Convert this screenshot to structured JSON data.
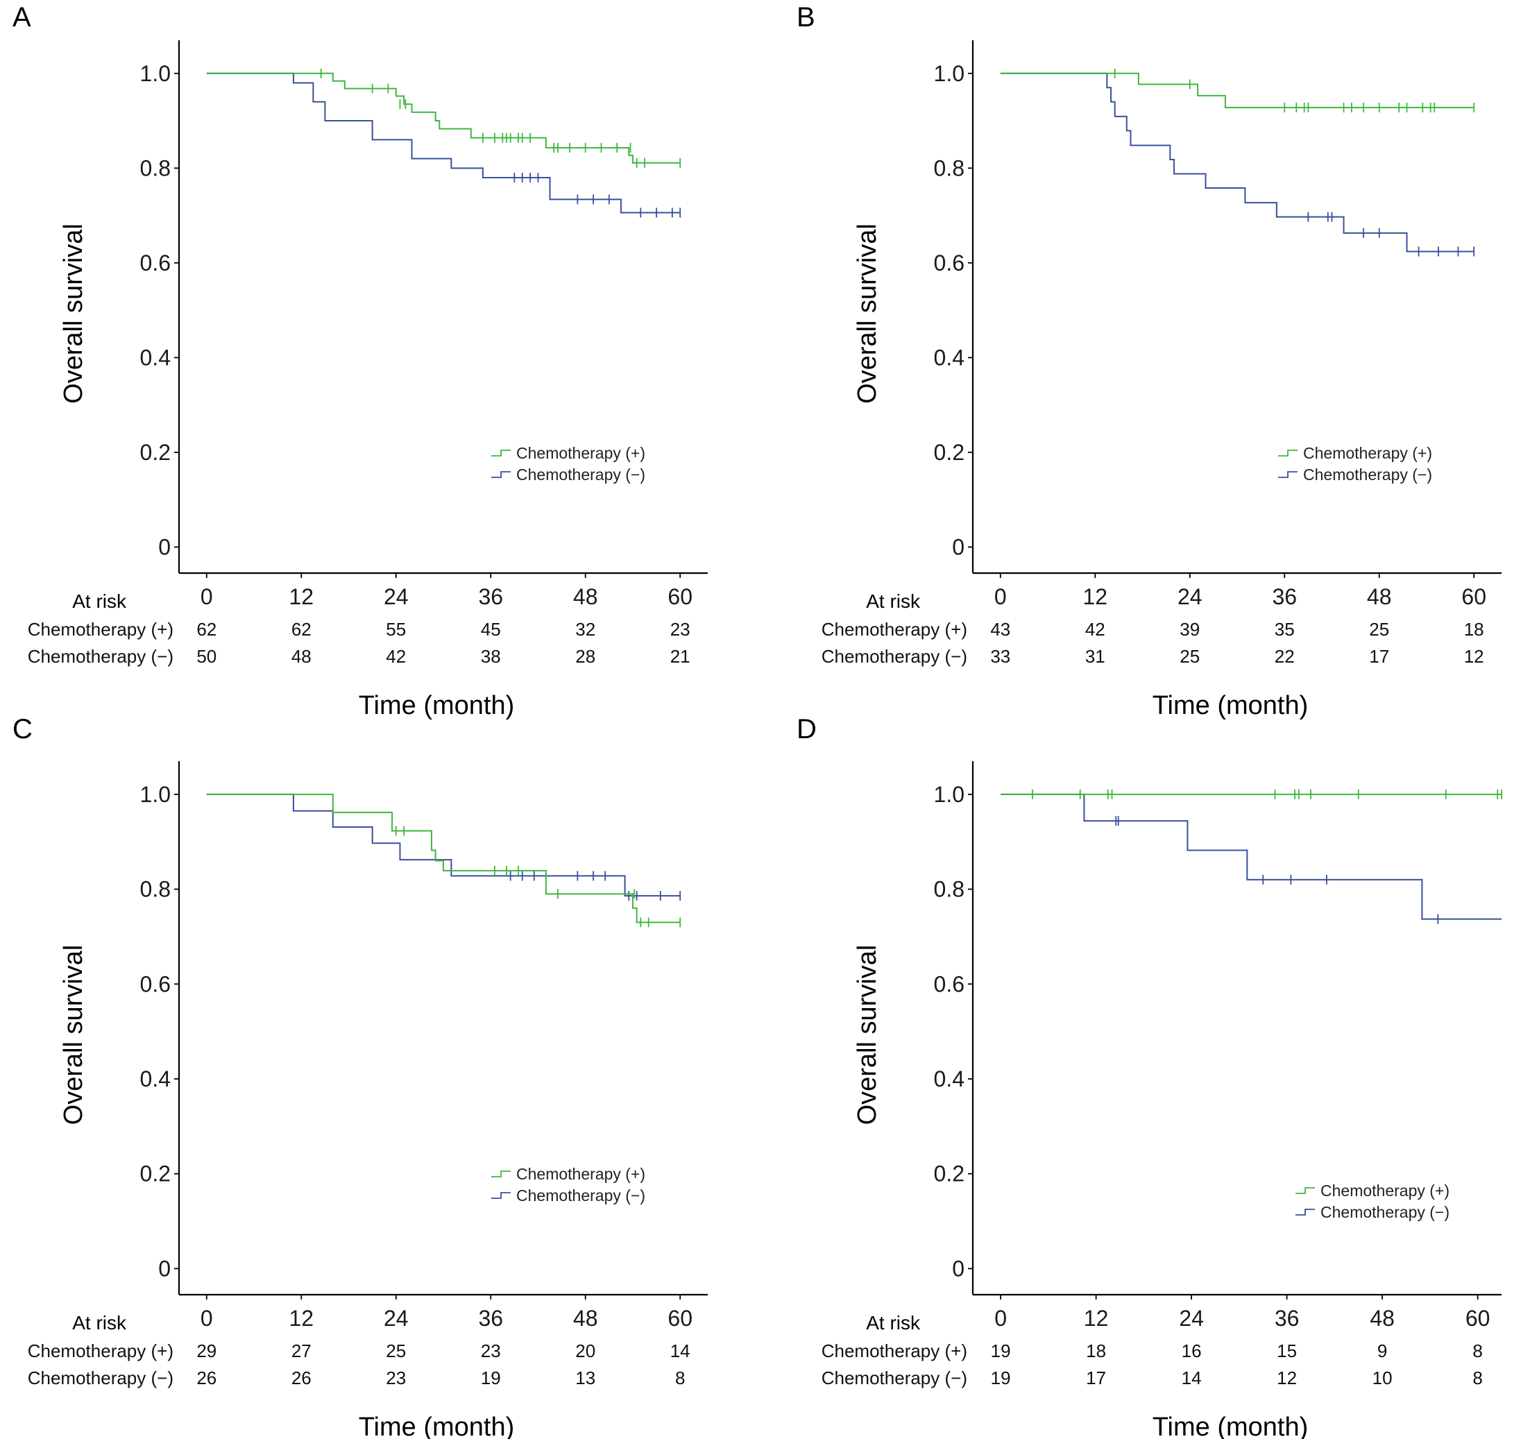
{
  "colors": {
    "chemo_plus": "#3fb63f",
    "chemo_minus": "#3a4f9c",
    "axis": "#000000"
  },
  "legend_labels": [
    "Chemotherapy (+)",
    "Chemotherapy (−)"
  ],
  "at_risk_title": "At risk",
  "xlabel": "Time (month)",
  "ylabel": "Overall survival",
  "chart_data": [
    {
      "panel": "A",
      "type": "line",
      "xlabel": "Time (month)",
      "ylabel": "Overall survival",
      "x_ticks": [
        0,
        12,
        24,
        36,
        48,
        60
      ],
      "y_ticks": [
        0,
        0.2,
        0.4,
        0.6,
        0.8,
        1.0
      ],
      "y_tick_labels": [
        "0",
        "0.2",
        "0.4",
        "0.6",
        "0.8",
        "1.0"
      ],
      "xlim": [
        -3.5,
        63.5
      ],
      "ylim": [
        -0.055,
        1.07
      ],
      "legend": "lower-right",
      "series": [
        {
          "name": "Chemotherapy (+)",
          "steps": [
            [
              0,
              1.0
            ],
            [
              16,
              0.984
            ],
            [
              17.5,
              0.968
            ],
            [
              24,
              0.952
            ],
            [
              25,
              0.935
            ],
            [
              26,
              0.918
            ],
            [
              29,
              0.9
            ],
            [
              29.5,
              0.883
            ],
            [
              33.5,
              0.864
            ],
            [
              43,
              0.843
            ],
            [
              53.5,
              0.827
            ],
            [
              54,
              0.811
            ],
            [
              60,
              0.811
            ]
          ],
          "censors": [
            [
              14.5,
              1.0
            ],
            [
              21,
              0.968
            ],
            [
              23,
              0.968
            ],
            [
              24.5,
              0.935
            ],
            [
              25.2,
              0.935
            ],
            [
              35,
              0.864
            ],
            [
              36.5,
              0.864
            ],
            [
              37.5,
              0.864
            ],
            [
              38,
              0.864
            ],
            [
              38.5,
              0.864
            ],
            [
              39.5,
              0.864
            ],
            [
              40,
              0.864
            ],
            [
              41,
              0.864
            ],
            [
              44,
              0.843
            ],
            [
              44.5,
              0.843
            ],
            [
              46,
              0.843
            ],
            [
              48,
              0.843
            ],
            [
              50,
              0.843
            ],
            [
              52,
              0.843
            ],
            [
              53.7,
              0.843
            ],
            [
              54.5,
              0.811
            ],
            [
              55.5,
              0.811
            ],
            [
              60,
              0.811
            ]
          ],
          "at_risk": [
            62,
            62,
            55,
            45,
            32,
            23
          ]
        },
        {
          "name": "Chemotherapy (−)",
          "steps": [
            [
              0,
              1.0
            ],
            [
              11,
              0.98
            ],
            [
              13.5,
              0.94
            ],
            [
              15,
              0.9
            ],
            [
              21,
              0.86
            ],
            [
              26,
              0.82
            ],
            [
              31,
              0.8
            ],
            [
              35,
              0.78
            ],
            [
              43.5,
              0.734
            ],
            [
              52.5,
              0.706
            ],
            [
              60,
              0.706
            ]
          ],
          "censors": [
            [
              39,
              0.78
            ],
            [
              40,
              0.78
            ],
            [
              41,
              0.78
            ],
            [
              42,
              0.78
            ],
            [
              47,
              0.734
            ],
            [
              49,
              0.734
            ],
            [
              51,
              0.734
            ],
            [
              55,
              0.706
            ],
            [
              57,
              0.706
            ],
            [
              59,
              0.706
            ],
            [
              60,
              0.706
            ]
          ],
          "at_risk": [
            50,
            48,
            42,
            38,
            28,
            21
          ]
        }
      ]
    },
    {
      "panel": "B",
      "type": "line",
      "xlabel": "Time (month)",
      "ylabel": "Overall survival",
      "x_ticks": [
        0,
        12,
        24,
        36,
        48,
        60
      ],
      "y_ticks": [
        0,
        0.2,
        0.4,
        0.6,
        0.8,
        1.0
      ],
      "y_tick_labels": [
        "0",
        "0.2",
        "0.4",
        "0.6",
        "0.8",
        "1.0"
      ],
      "xlim": [
        -3.5,
        63.5
      ],
      "ylim": [
        -0.055,
        1.07
      ],
      "legend": "lower-right",
      "series": [
        {
          "name": "Chemotherapy (+)",
          "steps": [
            [
              0,
              1.0
            ],
            [
              17.5,
              0.977
            ],
            [
              25,
              0.953
            ],
            [
              28.5,
              0.928
            ],
            [
              60,
              0.928
            ]
          ],
          "censors": [
            [
              14.5,
              1.0
            ],
            [
              24,
              0.977
            ],
            [
              36,
              0.928
            ],
            [
              37.5,
              0.928
            ],
            [
              38.5,
              0.928
            ],
            [
              39,
              0.928
            ],
            [
              43.5,
              0.928
            ],
            [
              44.5,
              0.928
            ],
            [
              46,
              0.928
            ],
            [
              48,
              0.928
            ],
            [
              50.5,
              0.928
            ],
            [
              51.5,
              0.928
            ],
            [
              53.5,
              0.928
            ],
            [
              54.5,
              0.928
            ],
            [
              55,
              0.928
            ],
            [
              60,
              0.928
            ]
          ],
          "at_risk": [
            43,
            42,
            39,
            35,
            25,
            18
          ]
        },
        {
          "name": "Chemotherapy (−)",
          "steps": [
            [
              0,
              1.0
            ],
            [
              13.5,
              0.97
            ],
            [
              14,
              0.94
            ],
            [
              14.5,
              0.909
            ],
            [
              16,
              0.879
            ],
            [
              16.5,
              0.848
            ],
            [
              21.5,
              0.818
            ],
            [
              22,
              0.788
            ],
            [
              26,
              0.758
            ],
            [
              31,
              0.727
            ],
            [
              35,
              0.697
            ],
            [
              43.5,
              0.663
            ],
            [
              51.5,
              0.624
            ],
            [
              60,
              0.624
            ]
          ],
          "censors": [
            [
              39,
              0.697
            ],
            [
              41.5,
              0.697
            ],
            [
              42,
              0.697
            ],
            [
              46,
              0.663
            ],
            [
              48,
              0.663
            ],
            [
              53,
              0.624
            ],
            [
              55.5,
              0.624
            ],
            [
              58,
              0.624
            ],
            [
              60,
              0.624
            ]
          ],
          "at_risk": [
            33,
            31,
            25,
            22,
            17,
            12
          ]
        }
      ]
    },
    {
      "panel": "C",
      "type": "line",
      "xlabel": "Time (month)",
      "ylabel": "Overall survival",
      "x_ticks": [
        0,
        12,
        24,
        36,
        48,
        60
      ],
      "y_ticks": [
        0,
        0.2,
        0.4,
        0.6,
        0.8,
        1.0
      ],
      "y_tick_labels": [
        "0",
        "0.2",
        "0.4",
        "0.6",
        "0.8",
        "1.0"
      ],
      "xlim": [
        -3.5,
        63.5
      ],
      "ylim": [
        -0.055,
        1.07
      ],
      "legend": "lower-right",
      "series": [
        {
          "name": "Chemotherapy (+)",
          "steps": [
            [
              0,
              1.0
            ],
            [
              16,
              0.962
            ],
            [
              23.5,
              0.923
            ],
            [
              28.5,
              0.882
            ],
            [
              29,
              0.86
            ],
            [
              30,
              0.839
            ],
            [
              43,
              0.79
            ],
            [
              54,
              0.76
            ],
            [
              54.5,
              0.73
            ],
            [
              60,
              0.73
            ]
          ],
          "censors": [
            [
              24,
              0.923
            ],
            [
              25,
              0.923
            ],
            [
              36.5,
              0.839
            ],
            [
              38,
              0.839
            ],
            [
              39.5,
              0.839
            ],
            [
              44.5,
              0.79
            ],
            [
              54.2,
              0.79
            ],
            [
              55,
              0.73
            ],
            [
              56,
              0.73
            ],
            [
              60,
              0.73
            ]
          ],
          "at_risk": [
            29,
            27,
            25,
            23,
            20,
            14
          ]
        },
        {
          "name": "Chemotherapy (−)",
          "steps": [
            [
              0,
              1.0
            ],
            [
              11,
              0.965
            ],
            [
              16,
              0.931
            ],
            [
              21,
              0.897
            ],
            [
              24.5,
              0.862
            ],
            [
              31,
              0.828
            ],
            [
              53,
              0.786
            ],
            [
              60,
              0.786
            ]
          ],
          "censors": [
            [
              38.5,
              0.828
            ],
            [
              40,
              0.828
            ],
            [
              41.5,
              0.828
            ],
            [
              47,
              0.828
            ],
            [
              49,
              0.828
            ],
            [
              50.5,
              0.828
            ],
            [
              53.5,
              0.786
            ],
            [
              54.5,
              0.786
            ],
            [
              57.5,
              0.786
            ],
            [
              60,
              0.786
            ]
          ],
          "at_risk": [
            26,
            26,
            23,
            19,
            13,
            8
          ]
        }
      ]
    },
    {
      "panel": "D",
      "type": "line",
      "xlabel": "Time (month)",
      "ylabel": "Overall survival",
      "x_ticks": [
        0,
        12,
        24,
        36,
        48,
        60
      ],
      "y_ticks": [
        0,
        0.2,
        0.4,
        0.6,
        0.8,
        1.0
      ],
      "y_tick_labels": [
        "0",
        "0.2",
        "0.4",
        "0.6",
        "0.8",
        "1.0"
      ],
      "xlim": [
        -3.5,
        63
      ],
      "ylim": [
        -0.055,
        1.07
      ],
      "legend": "lower-right",
      "series": [
        {
          "name": "Chemotherapy (+)",
          "steps": [
            [
              0,
              1.0
            ],
            [
              63,
              1.0
            ]
          ],
          "censors": [
            [
              4,
              1.0
            ],
            [
              10,
              1.0
            ],
            [
              13.5,
              1.0
            ],
            [
              14,
              1.0
            ],
            [
              34.5,
              1.0
            ],
            [
              37,
              1.0
            ],
            [
              37.5,
              1.0
            ],
            [
              39,
              1.0
            ],
            [
              45,
              1.0
            ],
            [
              56,
              1.0
            ],
            [
              62.5,
              1.0
            ],
            [
              63,
              1.0
            ]
          ],
          "at_risk": [
            19,
            18,
            16,
            15,
            9,
            8
          ]
        },
        {
          "name": "Chemotherapy (−)",
          "steps": [
            [
              0,
              1.0
            ],
            [
              10.5,
              0.944
            ],
            [
              23.5,
              0.882
            ],
            [
              31,
              0.82
            ],
            [
              53,
              0.737
            ],
            [
              63,
              0.737
            ]
          ],
          "censors": [
            [
              14.5,
              0.944
            ],
            [
              14.8,
              0.944
            ],
            [
              33,
              0.82
            ],
            [
              36.5,
              0.82
            ],
            [
              41,
              0.82
            ],
            [
              55,
              0.737
            ]
          ],
          "at_risk": [
            19,
            17,
            14,
            12,
            10,
            8
          ]
        }
      ]
    }
  ]
}
